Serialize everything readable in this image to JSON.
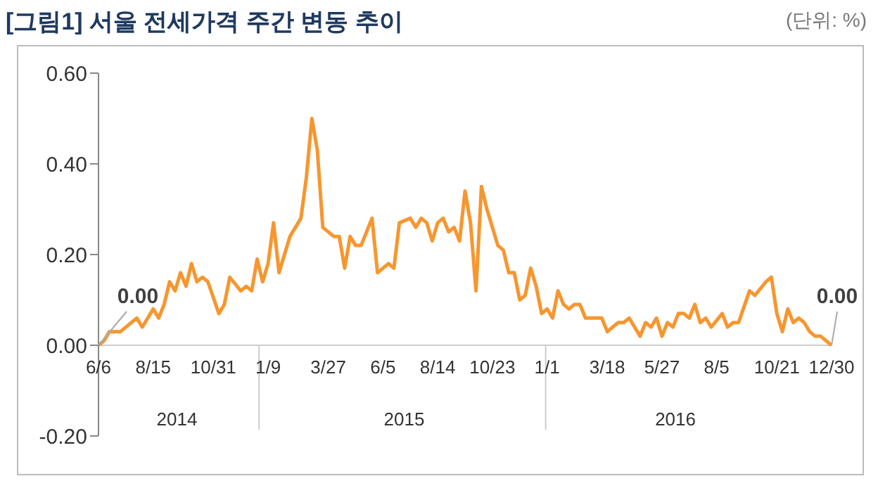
{
  "chart_data": {
    "type": "line",
    "title": "[그림1] 서울 전세가격 주간 변동 추이",
    "subtitle": "(단위: %)",
    "x": [
      "2014-06-06",
      "2014-06-13",
      "2014-06-20",
      "2014-07-04",
      "2014-07-25",
      "2014-08-01",
      "2014-08-15",
      "2014-08-22",
      "2014-08-29",
      "2014-09-05",
      "2014-09-12",
      "2014-09-19",
      "2014-09-26",
      "2014-10-03",
      "2014-10-10",
      "2014-10-17",
      "2014-10-24",
      "2014-11-07",
      "2014-11-14",
      "2014-11-21",
      "2014-12-05",
      "2014-12-12",
      "2014-12-19",
      "2014-12-26",
      "2015-01-02",
      "2015-01-09",
      "2015-01-16",
      "2015-01-23",
      "2015-02-06",
      "2015-02-20",
      "2015-02-27",
      "2015-03-06",
      "2015-03-13",
      "2015-03-20",
      "2015-04-03",
      "2015-04-10",
      "2015-04-17",
      "2015-04-24",
      "2015-05-01",
      "2015-05-08",
      "2015-05-22",
      "2015-05-29",
      "2015-06-12",
      "2015-06-19",
      "2015-06-26",
      "2015-07-10",
      "2015-07-17",
      "2015-07-24",
      "2015-07-31",
      "2015-08-07",
      "2015-08-14",
      "2015-08-21",
      "2015-08-28",
      "2015-09-04",
      "2015-09-11",
      "2015-09-18",
      "2015-09-25",
      "2015-10-02",
      "2015-10-09",
      "2015-10-16",
      "2015-10-30",
      "2015-11-06",
      "2015-11-13",
      "2015-11-20",
      "2015-11-27",
      "2015-12-04",
      "2015-12-11",
      "2015-12-18",
      "2015-12-25",
      "2016-01-01",
      "2016-01-08",
      "2016-01-15",
      "2016-01-22",
      "2016-01-29",
      "2016-02-05",
      "2016-02-12",
      "2016-02-19",
      "2016-03-11",
      "2016-03-18",
      "2016-04-01",
      "2016-04-08",
      "2016-04-15",
      "2016-04-29",
      "2016-05-06",
      "2016-05-13",
      "2016-05-20",
      "2016-05-27",
      "2016-06-03",
      "2016-06-10",
      "2016-06-17",
      "2016-06-24",
      "2016-07-01",
      "2016-07-08",
      "2016-07-15",
      "2016-07-22",
      "2016-07-29",
      "2016-08-12",
      "2016-08-19",
      "2016-08-26",
      "2016-09-02",
      "2016-09-16",
      "2016-09-23",
      "2016-10-07",
      "2016-10-14",
      "2016-10-21",
      "2016-10-28",
      "2016-11-04",
      "2016-11-11",
      "2016-11-18",
      "2016-11-25",
      "2016-12-02",
      "2016-12-09",
      "2016-12-16",
      "2016-12-30"
    ],
    "series": [
      {
        "color": "#f7962f",
        "values": [
          0.0,
          0.01,
          0.03,
          0.03,
          0.06,
          0.04,
          0.08,
          0.06,
          0.09,
          0.14,
          0.12,
          0.16,
          0.13,
          0.18,
          0.14,
          0.15,
          0.14,
          0.07,
          0.09,
          0.15,
          0.12,
          0.13,
          0.12,
          0.19,
          0.14,
          0.18,
          0.27,
          0.16,
          0.24,
          0.28,
          0.37,
          0.5,
          0.43,
          0.26,
          0.24,
          0.24,
          0.17,
          0.24,
          0.22,
          0.22,
          0.28,
          0.16,
          0.18,
          0.17,
          0.27,
          0.28,
          0.26,
          0.28,
          0.27,
          0.23,
          0.27,
          0.28,
          0.25,
          0.26,
          0.23,
          0.34,
          0.27,
          0.12,
          0.35,
          0.3,
          0.22,
          0.21,
          0.16,
          0.16,
          0.1,
          0.11,
          0.17,
          0.13,
          0.07,
          0.08,
          0.06,
          0.12,
          0.09,
          0.08,
          0.09,
          0.09,
          0.06,
          0.06,
          0.03,
          0.05,
          0.05,
          0.06,
          0.02,
          0.05,
          0.04,
          0.06,
          0.02,
          0.05,
          0.04,
          0.07,
          0.07,
          0.06,
          0.09,
          0.05,
          0.06,
          0.04,
          0.07,
          0.04,
          0.05,
          0.05,
          0.12,
          0.11,
          0.14,
          0.15,
          0.07,
          0.03,
          0.08,
          0.05,
          0.06,
          0.05,
          0.03,
          0.02,
          0.02,
          0.0
        ],
        "value_labels": [
          "0.00",
          null,
          null,
          null,
          null,
          null,
          null,
          null,
          null,
          null,
          null,
          null,
          null,
          null,
          null,
          null,
          null,
          null,
          null,
          null,
          null,
          null,
          null,
          null,
          null,
          null,
          null,
          null,
          null,
          null,
          null,
          null,
          null,
          null,
          null,
          null,
          null,
          null,
          null,
          null,
          null,
          null,
          null,
          null,
          null,
          null,
          null,
          null,
          null,
          null,
          null,
          null,
          null,
          null,
          null,
          null,
          null,
          null,
          null,
          null,
          null,
          null,
          null,
          null,
          null,
          null,
          null,
          null,
          null,
          null,
          null,
          null,
          null,
          null,
          null,
          null,
          null,
          null,
          null,
          null,
          null,
          null,
          null,
          null,
          null,
          null,
          null,
          null,
          null,
          null,
          null,
          null,
          null,
          null,
          null,
          null,
          null,
          null,
          null,
          null,
          null,
          null,
          null,
          null,
          null,
          null,
          null,
          null,
          null,
          null,
          null,
          null,
          null,
          "0.00"
        ]
      }
    ],
    "xlim": [
      "2014-06-06",
      "2016-12-30"
    ],
    "xticks": [
      {
        "value": "2014-06-06",
        "label": "6/6"
      },
      {
        "value": "2014-08-15",
        "label": "8/15"
      },
      {
        "value": "2014-10-31",
        "label": "10/31"
      },
      {
        "value": "2015-01-09",
        "label": "1/9"
      },
      {
        "value": "2015-03-27",
        "label": "3/27"
      },
      {
        "value": "2015-06-05",
        "label": "6/5"
      },
      {
        "value": "2015-08-14",
        "label": "8/14"
      },
      {
        "value": "2015-10-23",
        "label": "10/23"
      },
      {
        "value": "2016-01-01",
        "label": "1/1"
      },
      {
        "value": "2016-03-18",
        "label": "3/18"
      },
      {
        "value": "2016-05-27",
        "label": "5/27"
      },
      {
        "value": "2016-08-05",
        "label": "8/5"
      },
      {
        "value": "2016-10-21",
        "label": "10/21"
      },
      {
        "value": "2016-12-30",
        "label": "12/30"
      }
    ],
    "ylim": [
      -0.2,
      0.6
    ],
    "yticks": [
      {
        "value": -0.2,
        "label": "-0.20"
      },
      {
        "value": 0,
        "label": "0.00"
      },
      {
        "value": 0.2,
        "label": "0.20"
      },
      {
        "value": 0.4,
        "label": "0.40"
      },
      {
        "value": 0.6,
        "label": "0.60"
      }
    ],
    "annotations": [
      "2014",
      "2015",
      "2016"
    ],
    "grid": false,
    "legend": false,
    "marker": "none",
    "line_style": "solid"
  }
}
